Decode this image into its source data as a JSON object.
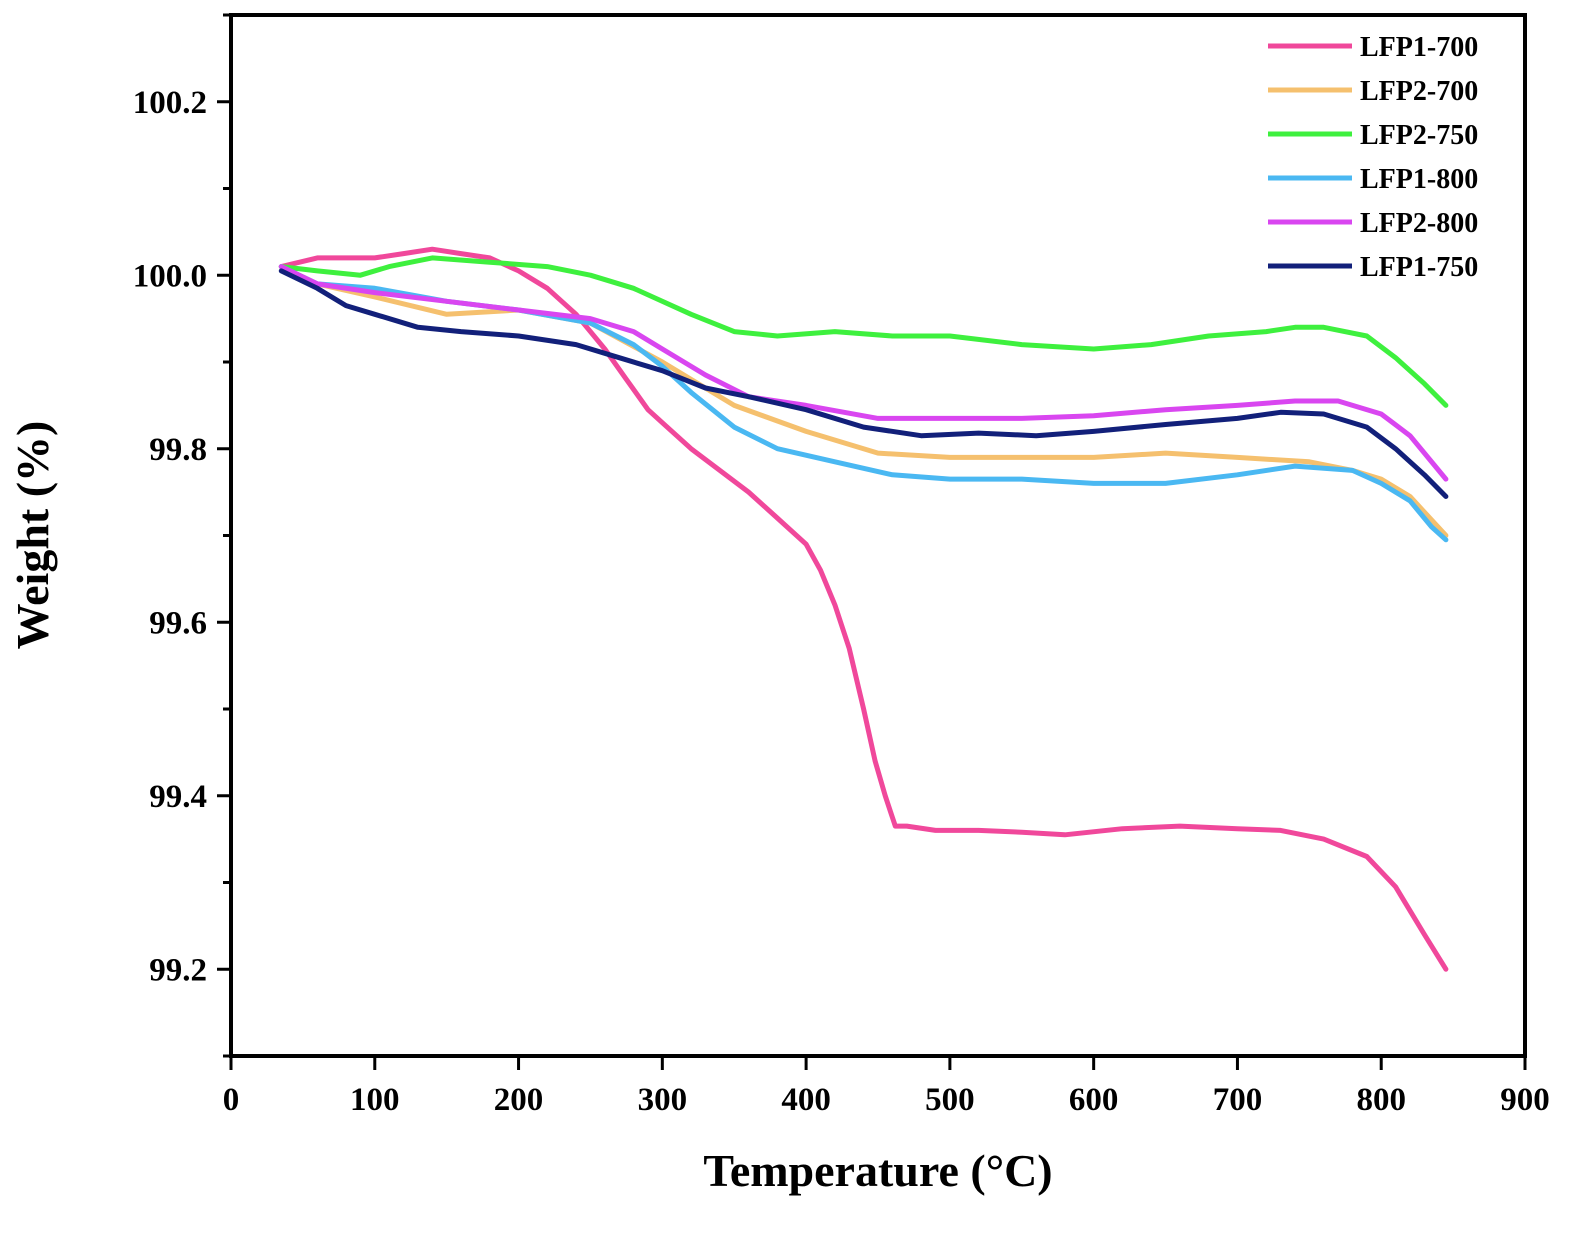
{
  "chart_data": {
    "type": "line",
    "xlabel": "Temperature (°C)",
    "ylabel": "Weight (%)",
    "xlim": [
      0,
      900
    ],
    "ylim": [
      99.1,
      100.3
    ],
    "xticks": [
      0,
      100,
      200,
      300,
      400,
      500,
      600,
      700,
      800,
      900
    ],
    "yticks": [
      99.2,
      99.4,
      99.6,
      99.8,
      100.0,
      100.2
    ],
    "xtick_labels": [
      "0",
      "100",
      "200",
      "300",
      "400",
      "500",
      "600",
      "700",
      "800",
      "900"
    ],
    "ytick_labels": [
      "99.2",
      "99.4",
      "99.6",
      "99.8",
      "100.0",
      "100.2"
    ],
    "grid": false,
    "legend_position": "top-right",
    "series": [
      {
        "name": "LFP1-700",
        "color": "#f0489b",
        "x": [
          35,
          60,
          80,
          100,
          120,
          140,
          160,
          180,
          200,
          220,
          240,
          260,
          275,
          290,
          300,
          320,
          340,
          360,
          380,
          400,
          410,
          420,
          430,
          440,
          448,
          455,
          460,
          462,
          470,
          490,
          520,
          550,
          580,
          620,
          660,
          700,
          730,
          760,
          790,
          810,
          830,
          845
        ],
        "y": [
          100.01,
          100.02,
          100.02,
          100.02,
          100.025,
          100.03,
          100.025,
          100.02,
          100.005,
          99.985,
          99.955,
          99.915,
          99.88,
          99.845,
          99.83,
          99.8,
          99.775,
          99.75,
          99.72,
          99.69,
          99.66,
          99.62,
          99.57,
          99.5,
          99.44,
          99.4,
          99.375,
          99.365,
          99.365,
          99.36,
          99.36,
          99.358,
          99.355,
          99.362,
          99.365,
          99.362,
          99.36,
          99.35,
          99.33,
          99.295,
          99.24,
          99.2
        ]
      },
      {
        "name": "LFP2-700",
        "color": "#f5c06e",
        "x": [
          35,
          60,
          100,
          150,
          200,
          250,
          300,
          350,
          400,
          450,
          500,
          550,
          600,
          650,
          700,
          750,
          780,
          800,
          820,
          845
        ],
        "y": [
          100.01,
          99.99,
          99.975,
          99.955,
          99.96,
          99.945,
          99.9,
          99.85,
          99.82,
          99.795,
          99.79,
          99.79,
          99.79,
          99.795,
          99.79,
          99.785,
          99.775,
          99.765,
          99.745,
          99.7
        ]
      },
      {
        "name": "LFP2-750",
        "color": "#3ef03e",
        "x": [
          35,
          60,
          90,
          110,
          140,
          180,
          220,
          250,
          280,
          320,
          350,
          380,
          420,
          460,
          500,
          550,
          600,
          640,
          680,
          720,
          740,
          760,
          790,
          810,
          830,
          845
        ],
        "y": [
          100.01,
          100.005,
          100.0,
          100.01,
          100.02,
          100.015,
          100.01,
          100.0,
          99.985,
          99.955,
          99.935,
          99.93,
          99.935,
          99.93,
          99.93,
          99.92,
          99.915,
          99.92,
          99.93,
          99.935,
          99.94,
          99.94,
          99.93,
          99.905,
          99.875,
          99.85
        ]
      },
      {
        "name": "LFP1-800",
        "color": "#4ab8f2",
        "x": [
          35,
          60,
          100,
          150,
          200,
          250,
          280,
          300,
          320,
          350,
          380,
          420,
          460,
          500,
          550,
          600,
          650,
          700,
          740,
          780,
          800,
          820,
          835,
          845
        ],
        "y": [
          100.01,
          99.99,
          99.985,
          99.97,
          99.96,
          99.945,
          99.92,
          99.895,
          99.865,
          99.825,
          99.8,
          99.785,
          99.77,
          99.765,
          99.765,
          99.76,
          99.76,
          99.77,
          99.78,
          99.775,
          99.76,
          99.74,
          99.71,
          99.695
        ]
      },
      {
        "name": "LFP2-800",
        "color": "#d946f0",
        "x": [
          35,
          60,
          100,
          150,
          200,
          250,
          280,
          300,
          330,
          360,
          400,
          450,
          500,
          550,
          600,
          650,
          700,
          740,
          770,
          800,
          820,
          845
        ],
        "y": [
          100.01,
          99.99,
          99.98,
          99.97,
          99.96,
          99.95,
          99.935,
          99.915,
          99.885,
          99.86,
          99.85,
          99.835,
          99.835,
          99.835,
          99.838,
          99.845,
          99.85,
          99.855,
          99.855,
          99.84,
          99.815,
          99.765
        ]
      },
      {
        "name": "LFP1-750",
        "color": "#12207a",
        "x": [
          35,
          60,
          80,
          100,
          130,
          160,
          200,
          240,
          270,
          300,
          330,
          360,
          400,
          440,
          480,
          520,
          560,
          600,
          650,
          700,
          730,
          760,
          790,
          810,
          830,
          845
        ],
        "y": [
          100.005,
          99.985,
          99.965,
          99.955,
          99.94,
          99.935,
          99.93,
          99.92,
          99.905,
          99.89,
          99.87,
          99.86,
          99.845,
          99.825,
          99.815,
          99.818,
          99.815,
          99.82,
          99.828,
          99.835,
          99.842,
          99.84,
          99.825,
          99.8,
          99.77,
          99.745
        ]
      }
    ]
  }
}
